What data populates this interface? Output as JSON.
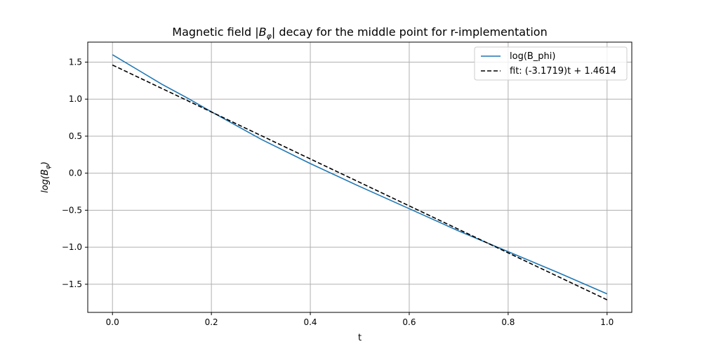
{
  "chart_data": {
    "type": "line",
    "title": {
      "prefix": "Magnetic field |",
      "symbol": "B",
      "subscript": "φ",
      "suffix": "| decay for the middle point for r-implementation"
    },
    "xlabel": "t",
    "ylabel": {
      "prefix": "log(",
      "symbol": "B",
      "subscript": "φ",
      "suffix": ")"
    },
    "xlim": [
      -0.05,
      1.05
    ],
    "ylim": [
      -1.88,
      1.77
    ],
    "x_ticks": [
      0.0,
      0.2,
      0.4,
      0.6,
      0.8,
      1.0
    ],
    "x_tick_labels": [
      "0.0",
      "0.2",
      "0.4",
      "0.6",
      "0.8",
      "1.0"
    ],
    "y_ticks": [
      -1.5,
      -1.0,
      -0.5,
      0.0,
      0.5,
      1.0,
      1.5
    ],
    "y_tick_labels": [
      "−1.5",
      "−1.0",
      "−0.5",
      "0.0",
      "0.5",
      "1.0",
      "1.5"
    ],
    "grid": true,
    "legend_position": "top-right",
    "series": [
      {
        "name": "log(B_phi)",
        "color": "#1f77b4",
        "style": "solid",
        "x": [
          0.0,
          0.05,
          0.1,
          0.15,
          0.2,
          0.3,
          0.4,
          0.5,
          0.6,
          0.7,
          0.8,
          0.9,
          1.0
        ],
        "y": [
          1.6,
          1.4,
          1.2,
          1.02,
          0.83,
          0.46,
          0.13,
          -0.18,
          -0.48,
          -0.78,
          -1.06,
          -1.34,
          -1.63
        ]
      },
      {
        "name": "fit: (-3.1719)t + 1.4614",
        "color": "#000000",
        "style": "dashed",
        "x": [
          0.0,
          1.0
        ],
        "y": [
          1.4614,
          -1.7105
        ]
      }
    ]
  }
}
